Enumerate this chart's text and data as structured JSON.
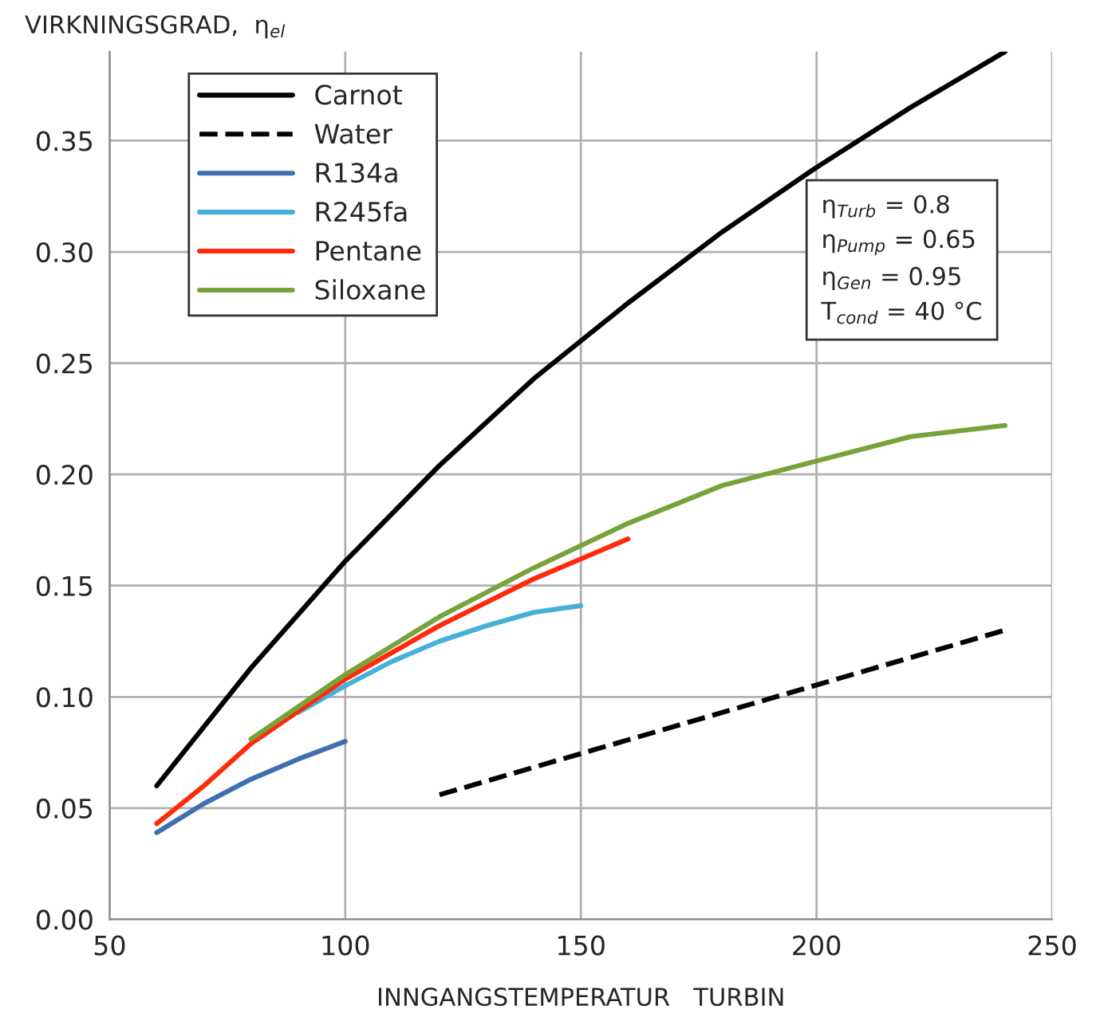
{
  "chart_data": {
    "type": "line",
    "xlabel": "INNGANGSTEMPERATUR   TURBIN",
    "ylabel": "VIRKNINGSGRAD,  η$_{el}$",
    "xlim": [
      50,
      250
    ],
    "xticks": [
      50,
      100,
      150,
      200,
      250
    ],
    "ylim": [
      0,
      0.39
    ],
    "yticks": [
      {
        "value": 0,
        "label": "0.00"
      },
      {
        "value": 0.05,
        "label": "0.05"
      },
      {
        "value": 0.1,
        "label": "0.10"
      },
      {
        "value": 0.15,
        "label": "0.15"
      },
      {
        "value": 0.2,
        "label": "0.20"
      },
      {
        "value": 0.25,
        "label": "0.25"
      },
      {
        "value": 0.3,
        "label": "0.30"
      },
      {
        "value": 0.35,
        "label": "0.35"
      }
    ],
    "grid": true,
    "legend": "top left",
    "marker": "none",
    "annotations": [
      "η$_{Turb}$ = 0.8\nη$_{Pump}$ = 0.65\nη$_{Gen}$ = 0.95\nT$_{cond}$ = 40 °C"
    ],
    "series": [
      {
        "name": "Carnot",
        "color": "#000000",
        "x": [
          60,
          80,
          100,
          120,
          140,
          160,
          180,
          200,
          220,
          240
        ],
        "values": [
          0.06,
          0.113,
          0.161,
          0.204,
          0.243,
          0.277,
          0.309,
          0.338,
          0.365,
          0.39
        ]
      },
      {
        "name": "Water",
        "color": "#000000",
        "line_style": "dashed",
        "x": [
          120,
          240
        ],
        "values": [
          0.056,
          0.13
        ]
      },
      {
        "name": "R134a",
        "color": "#3f6fb0",
        "x": [
          60,
          70,
          80,
          90,
          100
        ],
        "values": [
          0.039,
          0.052,
          0.063,
          0.072,
          0.08
        ]
      },
      {
        "name": "R245fa",
        "color": "#45b0d8",
        "x": [
          90,
          100,
          110,
          120,
          130,
          140,
          150
        ],
        "values": [
          0.093,
          0.105,
          0.116,
          0.125,
          0.132,
          0.138,
          0.141
        ]
      },
      {
        "name": "Pentane",
        "color": "#ff2a0e",
        "x": [
          60,
          70,
          80,
          100,
          120,
          140,
          160
        ],
        "values": [
          0.043,
          0.06,
          0.079,
          0.108,
          0.132,
          0.153,
          0.171
        ]
      },
      {
        "name": "Siloxane",
        "color": "#77a33a",
        "x": [
          80,
          100,
          120,
          140,
          160,
          180,
          200,
          220,
          240
        ],
        "values": [
          0.081,
          0.11,
          0.136,
          0.158,
          0.178,
          0.195,
          0.206,
          0.217,
          0.222
        ]
      }
    ]
  }
}
